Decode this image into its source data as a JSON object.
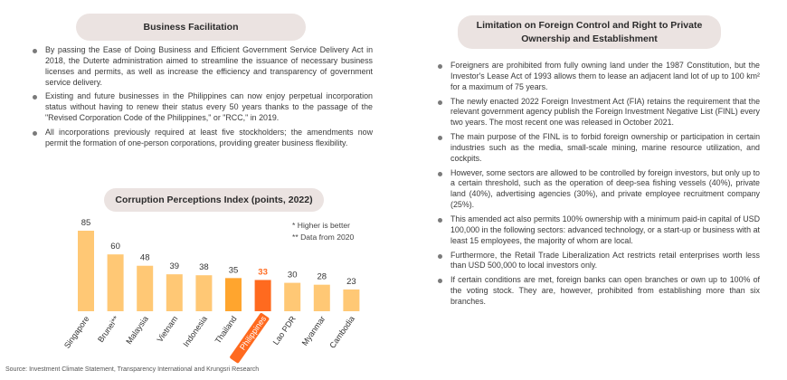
{
  "left": {
    "heading": "Business Facilitation",
    "bullets": [
      "By passing the Ease of Doing Business and Efficient Government Service Delivery Act in 2018, the Duterte administration aimed to streamline the issuance of necessary business licenses and permits, as well as increase the efficiency and transparency of government service delivery.",
      "Existing and future businesses in the Philippines can now enjoy perpetual incorporation status without having to renew their status every 50 years thanks to the passage of the \"Revised Corporation Code of the Philippines,\" or \"RCC,\" in 2019.",
      "All incorporations previously required at least five stockholders; the amendments now permit the formation of one-person corporations, providing greater business flexibility."
    ]
  },
  "chart_data": {
    "type": "bar",
    "title": "Corruption Perceptions Index (points, 2022)",
    "categories": [
      "Singapore",
      "Brunei**",
      "Malaysia",
      "Vietnam",
      "Indonesia",
      "Thailand",
      "Philippines",
      "Lao PDR",
      "Myanmar",
      "Cambodia"
    ],
    "values": [
      85,
      60,
      48,
      39,
      38,
      35,
      33,
      30,
      28,
      23
    ],
    "highlight_category": "Philippines",
    "ylim": [
      0,
      90
    ],
    "grid": false,
    "notes": [
      "* Higher is better",
      "** Data from 2020"
    ],
    "colors": {
      "normal_bar": "#ffc875",
      "thailand_bar": "#ffa52e",
      "highlight_bar": "#ff6a1f",
      "highlight_label_bg": "#ff6a1f",
      "value_label": "#333333"
    }
  },
  "right": {
    "heading": "Limitation on Foreign Control and Right to Private Ownership and Establishment",
    "bullets": [
      "Foreigners are prohibited from fully owning land under the 1987 Constitution, but the Investor's Lease Act of 1993 allows them to lease an adjacent land lot of up to 100 km² for a maximum of 75 years.",
      "The newly enacted 2022 Foreign Investment Act (FIA) retains the requirement that the relevant government agency publish the Foreign Investment Negative List (FINL) every two years. The most recent one was released in October 2021.",
      "The main purpose of the FINL is to forbid foreign ownership or participation in certain industries such as the media, small-scale mining, marine resource utilization, and cockpits.",
      "However, some sectors are allowed to be controlled by foreign investors, but only up to a certain threshold, such as the operation of deep-sea fishing vessels (40%), private land (40%), advertising agencies (30%), and private employee recruitment company (25%).",
      "This amended act also permits 100% ownership with a minimum paid-in capital of USD 100,000 in the following sectors: advanced technology, or a start-up or business with at least 15 employees, the majority of whom are local.",
      "Furthermore, the Retail Trade Liberalization Act restricts retail enterprises worth less than USD 500,000 to local investors only.",
      "If certain conditions are met, foreign banks can open branches or own up to 100% of the voting stock. They are, however, prohibited from establishing more than six branches."
    ]
  },
  "source": "Source: Investment Climate Statement, Transparency International and Krungsri Research"
}
